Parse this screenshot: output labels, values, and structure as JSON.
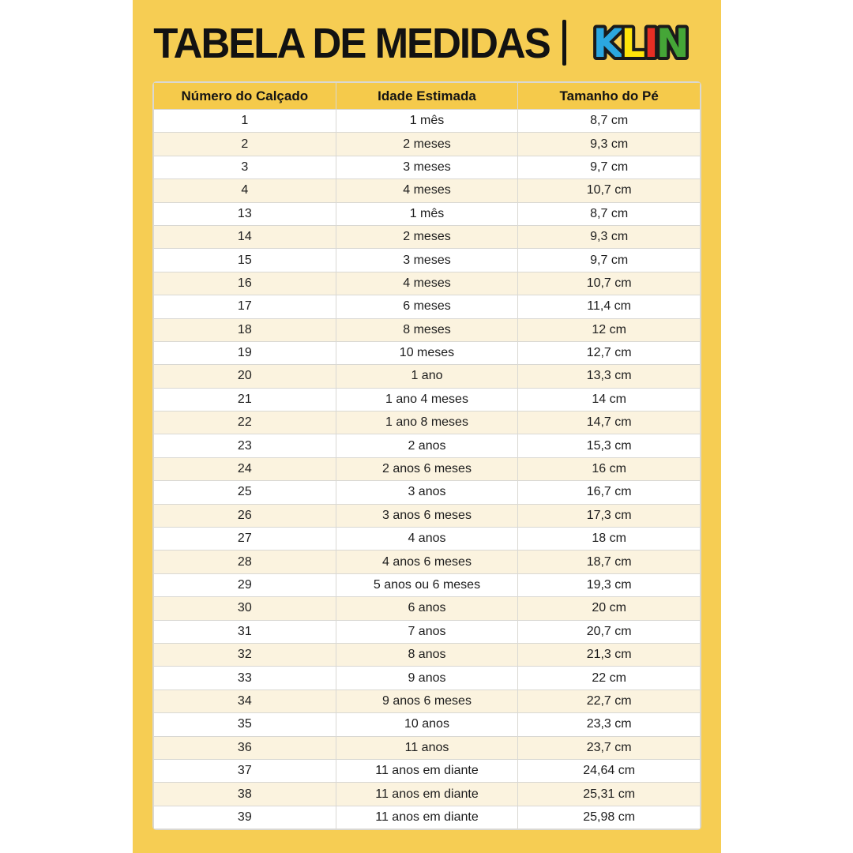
{
  "title": "TABELA DE MEDIDAS",
  "logo": {
    "name": "KLIN",
    "outline_color": "#1a1a1a",
    "letters": [
      {
        "char": "K",
        "color": "#2BA7E0"
      },
      {
        "char": "L",
        "color": "#FFE50A"
      },
      {
        "char": "I",
        "color": "#E62E24"
      },
      {
        "char": "N",
        "color": "#45A637"
      }
    ]
  },
  "colors": {
    "panel_yellow": "#F6CD53",
    "header_yellow": "#F5CA4B",
    "row_cream": "#FBF3DF",
    "row_white": "#FFFFFF",
    "text_black": "#121212",
    "border_gray": "#D9D8D3"
  },
  "table": {
    "headers": [
      "Número do Calçado",
      "Idade Estimada",
      "Tamanho do Pé"
    ],
    "rows": [
      [
        "1",
        "1 mês",
        "8,7 cm"
      ],
      [
        "2",
        "2 meses",
        "9,3 cm"
      ],
      [
        "3",
        "3 meses",
        "9,7 cm"
      ],
      [
        "4",
        "4 meses",
        "10,7 cm"
      ],
      [
        "13",
        "1 mês",
        "8,7 cm"
      ],
      [
        "14",
        "2 meses",
        "9,3 cm"
      ],
      [
        "15",
        "3 meses",
        "9,7 cm"
      ],
      [
        "16",
        "4 meses",
        "10,7 cm"
      ],
      [
        "17",
        "6 meses",
        "11,4 cm"
      ],
      [
        "18",
        "8 meses",
        "12 cm"
      ],
      [
        "19",
        "10 meses",
        "12,7 cm"
      ],
      [
        "20",
        "1 ano",
        "13,3 cm"
      ],
      [
        "21",
        "1 ano 4 meses",
        "14 cm"
      ],
      [
        "22",
        "1 ano 8 meses",
        "14,7 cm"
      ],
      [
        "23",
        "2 anos",
        "15,3 cm"
      ],
      [
        "24",
        "2 anos 6 meses",
        "16 cm"
      ],
      [
        "25",
        "3 anos",
        "16,7 cm"
      ],
      [
        "26",
        "3 anos 6 meses",
        "17,3 cm"
      ],
      [
        "27",
        "4 anos",
        "18 cm"
      ],
      [
        "28",
        "4 anos 6 meses",
        "18,7 cm"
      ],
      [
        "29",
        "5 anos ou 6 meses",
        "19,3 cm"
      ],
      [
        "30",
        "6 anos",
        "20 cm"
      ],
      [
        "31",
        "7 anos",
        "20,7 cm"
      ],
      [
        "32",
        "8 anos",
        "21,3 cm"
      ],
      [
        "33",
        "9 anos",
        "22 cm"
      ],
      [
        "34",
        "9 anos 6 meses",
        "22,7 cm"
      ],
      [
        "35",
        "10 anos",
        "23,3 cm"
      ],
      [
        "36",
        "11 anos",
        "23,7 cm"
      ],
      [
        "37",
        "11 anos em diante",
        "24,64 cm"
      ],
      [
        "38",
        "11 anos em diante",
        "25,31 cm"
      ],
      [
        "39",
        "11 anos em diante",
        "25,98 cm"
      ]
    ]
  }
}
